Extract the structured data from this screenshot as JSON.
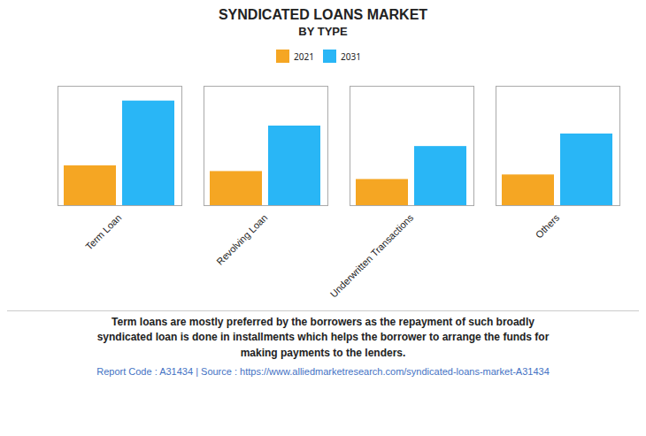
{
  "chart_data": {
    "type": "bar",
    "title": "SYNDICATED LOANS MARKET",
    "subtitle": "BY TYPE",
    "categories": [
      "Term Loan",
      "Revolving Loan",
      "Underwritten Transactions",
      "Others"
    ],
    "series": [
      {
        "name": "2021",
        "color": "#F5A623",
        "values": [
          3.5,
          3.0,
          2.3,
          2.7
        ]
      },
      {
        "name": "2031",
        "color": "#29B6F6",
        "values": [
          9.2,
          7.0,
          5.2,
          6.3
        ]
      }
    ],
    "ylim": [
      0,
      10.5
    ],
    "yticks": [],
    "grid": false,
    "legend": "top",
    "tick_labels": "x",
    "annotations": [
      {
        "text": "Term loans are mostly preferred by the borrowers as the repayment of such broadly\nsyndicated loan is done in installments which helps the borrower to arrange the funds for\nmaking payments to the lenders."
      },
      {
        "text": "Report Code : A31434  |  Source : https://www.alliedmarketresearch.com/syndicated-loans-market-A31434",
        "color": "#4472C4"
      }
    ]
  }
}
